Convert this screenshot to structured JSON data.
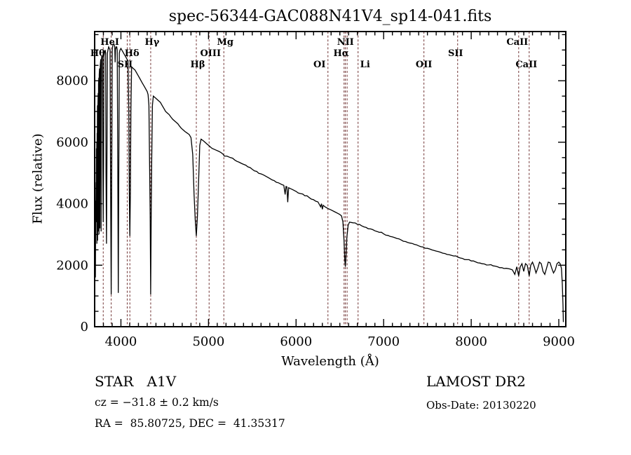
{
  "figure": {
    "title": "spec-56344-GAC088N41V4_sp14-041.fits",
    "background_color": "#ffffff",
    "frame_color": "#000000",
    "spectrum_color": "#000000",
    "line_marker_color": "#713434",
    "annotations": {
      "class_line": "STAR   A1V",
      "cz_line": "cz = −31.8 ± 0.2 km/s",
      "radec_line": "RA =  85.80725, DEC =  41.35317",
      "survey_line": "LAMOST DR2",
      "obsdate_line": "Obs-Date: 20130220"
    }
  },
  "chart_data": {
    "type": "line",
    "title": "spec-56344-GAC088N41V4_sp14-041.fits",
    "xlabel": "Wavelength (Å)",
    "ylabel": "Flux (relative)",
    "xlim": [
      3700,
      9080
    ],
    "ylim": [
      0,
      9600
    ],
    "x_major_ticks": [
      4000,
      5000,
      6000,
      7000,
      8000,
      9000
    ],
    "x_minor_step": 100,
    "y_major_ticks": [
      0,
      2000,
      4000,
      6000,
      8000
    ],
    "y_minor_step": 500,
    "grid": false,
    "legend": "none",
    "noise_amplitude": 28,
    "spectral_lines": [
      {
        "label": "Hθ",
        "wavelength": 3798,
        "row": 2,
        "dx": -8
      },
      {
        "label": "HeI",
        "wavelength": 3889,
        "row": 1,
        "dx": -2
      },
      {
        "label": "SII",
        "wavelength": 4072,
        "row": 3,
        "dx": -3
      },
      {
        "label": "Hδ",
        "wavelength": 4102,
        "row": 2,
        "dx": 3
      },
      {
        "label": "Hγ",
        "wavelength": 4340,
        "row": 1,
        "dx": 2
      },
      {
        "label": "Hβ",
        "wavelength": 4861,
        "row": 3,
        "dx": 2
      },
      {
        "label": "OIII",
        "wavelength": 5007,
        "row": 2,
        "dx": 2
      },
      {
        "label": "Mg",
        "wavelength": 5175,
        "row": 1,
        "dx": 2
      },
      {
        "label": "OI",
        "wavelength": 6364,
        "row": 3,
        "dx": -12
      },
      {
        "label": "NII",
        "wavelength": 6548,
        "row": 1,
        "dx": 2
      },
      {
        "label": "Hα",
        "wavelength": 6563,
        "row": 2,
        "dx": -6
      },
      {
        "label": "",
        "wavelength": 6583,
        "row": 0,
        "dx": 0
      },
      {
        "label": "Li",
        "wavelength": 6708,
        "row": 3,
        "dx": 10
      },
      {
        "label": "OII",
        "wavelength": 7460,
        "row": 3,
        "dx": 0
      },
      {
        "label": "SII",
        "wavelength": 7845,
        "row": 2,
        "dx": -3
      },
      {
        "label": "CaII",
        "wavelength": 8542,
        "row": 1,
        "dx": -2
      },
      {
        "label": "CaII",
        "wavelength": 8662,
        "row": 3,
        "dx": -4
      }
    ],
    "series": [
      {
        "name": "flux",
        "points": [
          [
            3701,
            60
          ],
          [
            3702,
            3300
          ],
          [
            3705,
            2600
          ],
          [
            3707,
            4100
          ],
          [
            3709,
            1600
          ],
          [
            3712,
            3900
          ],
          [
            3714,
            3600
          ],
          [
            3716,
            4700
          ],
          [
            3718,
            4400
          ],
          [
            3720,
            5800
          ],
          [
            3722,
            3400
          ],
          [
            3724,
            6000
          ],
          [
            3726,
            2700
          ],
          [
            3728,
            6300
          ],
          [
            3730,
            5600
          ],
          [
            3732,
            7200
          ],
          [
            3734,
            2800
          ],
          [
            3736,
            7000
          ],
          [
            3740,
            7600
          ],
          [
            3742,
            3100
          ],
          [
            3744,
            7900
          ],
          [
            3748,
            8100
          ],
          [
            3750,
            3000
          ],
          [
            3752,
            8200
          ],
          [
            3756,
            8400
          ],
          [
            3760,
            3200
          ],
          [
            3764,
            8500
          ],
          [
            3770,
            8700
          ],
          [
            3774,
            3100
          ],
          [
            3778,
            8700
          ],
          [
            3782,
            8800
          ],
          [
            3790,
            8800
          ],
          [
            3794,
            5200
          ],
          [
            3798,
            3400
          ],
          [
            3802,
            5400
          ],
          [
            3806,
            8800
          ],
          [
            3812,
            8900
          ],
          [
            3820,
            9000
          ],
          [
            3826,
            8900
          ],
          [
            3830,
            5000
          ],
          [
            3835,
            2700
          ],
          [
            3840,
            5200
          ],
          [
            3846,
            8900
          ],
          [
            3852,
            9000
          ],
          [
            3860,
            9100
          ],
          [
            3876,
            9000
          ],
          [
            3882,
            4800
          ],
          [
            3889,
            1050
          ],
          [
            3895,
            5200
          ],
          [
            3901,
            9000
          ],
          [
            3910,
            9200
          ],
          [
            3920,
            9200
          ],
          [
            3930,
            9100
          ],
          [
            3934,
            8600
          ],
          [
            3938,
            9000
          ],
          [
            3945,
            9100
          ],
          [
            3952,
            9100
          ],
          [
            3958,
            9000
          ],
          [
            3964,
            5200
          ],
          [
            3970,
            1100
          ],
          [
            3976,
            5400
          ],
          [
            3982,
            8900
          ],
          [
            3990,
            9000
          ],
          [
            4000,
            9050
          ],
          [
            4010,
            9000
          ],
          [
            4020,
            8950
          ],
          [
            4030,
            8900
          ],
          [
            4040,
            8850
          ],
          [
            4050,
            8800
          ],
          [
            4060,
            8750
          ],
          [
            4070,
            8700
          ],
          [
            4080,
            8650
          ],
          [
            4090,
            7000
          ],
          [
            4096,
            4200
          ],
          [
            4102,
            2950
          ],
          [
            4108,
            4400
          ],
          [
            4114,
            7000
          ],
          [
            4122,
            8450
          ],
          [
            4140,
            8400
          ],
          [
            4160,
            8350
          ],
          [
            4180,
            8250
          ],
          [
            4200,
            8150
          ],
          [
            4220,
            8050
          ],
          [
            4240,
            7950
          ],
          [
            4260,
            7850
          ],
          [
            4280,
            7750
          ],
          [
            4300,
            7650
          ],
          [
            4310,
            7550
          ],
          [
            4320,
            7200
          ],
          [
            4328,
            5200
          ],
          [
            4334,
            3600
          ],
          [
            4340,
            1050
          ],
          [
            4346,
            3700
          ],
          [
            4352,
            5400
          ],
          [
            4360,
            7200
          ],
          [
            4370,
            7500
          ],
          [
            4390,
            7450
          ],
          [
            4410,
            7400
          ],
          [
            4430,
            7350
          ],
          [
            4450,
            7300
          ],
          [
            4470,
            7200
          ],
          [
            4490,
            7100
          ],
          [
            4510,
            7000
          ],
          [
            4530,
            6950
          ],
          [
            4550,
            6900
          ],
          [
            4570,
            6820
          ],
          [
            4590,
            6750
          ],
          [
            4610,
            6700
          ],
          [
            4630,
            6650
          ],
          [
            4650,
            6600
          ],
          [
            4670,
            6520
          ],
          [
            4690,
            6450
          ],
          [
            4710,
            6400
          ],
          [
            4730,
            6350
          ],
          [
            4780,
            6250
          ],
          [
            4800,
            6150
          ],
          [
            4820,
            5600
          ],
          [
            4835,
            4300
          ],
          [
            4848,
            3500
          ],
          [
            4861,
            2950
          ],
          [
            4874,
            3600
          ],
          [
            4886,
            4600
          ],
          [
            4900,
            5900
          ],
          [
            4915,
            6100
          ],
          [
            4940,
            6050
          ],
          [
            4960,
            6000
          ],
          [
            4980,
            5950
          ],
          [
            5000,
            5900
          ],
          [
            5020,
            5850
          ],
          [
            5040,
            5800
          ],
          [
            5080,
            5750
          ],
          [
            5120,
            5700
          ],
          [
            5170,
            5600
          ],
          [
            5180,
            5550
          ],
          [
            5210,
            5550
          ],
          [
            5250,
            5500
          ],
          [
            5300,
            5420
          ],
          [
            5350,
            5350
          ],
          [
            5400,
            5280
          ],
          [
            5450,
            5200
          ],
          [
            5500,
            5120
          ],
          [
            5550,
            5050
          ],
          [
            5600,
            4970
          ],
          [
            5650,
            4900
          ],
          [
            5700,
            4820
          ],
          [
            5750,
            4750
          ],
          [
            5800,
            4680
          ],
          [
            5840,
            4620
          ],
          [
            5860,
            4600
          ],
          [
            5875,
            4300
          ],
          [
            5885,
            4560
          ],
          [
            5895,
            4550
          ],
          [
            5905,
            4050
          ],
          [
            5915,
            4520
          ],
          [
            5930,
            4500
          ],
          [
            5960,
            4460
          ],
          [
            6000,
            4400
          ],
          [
            6050,
            4330
          ],
          [
            6100,
            4260
          ],
          [
            6150,
            4200
          ],
          [
            6200,
            4130
          ],
          [
            6250,
            4060
          ],
          [
            6280,
            3900
          ],
          [
            6290,
            4000
          ],
          [
            6300,
            3820
          ],
          [
            6310,
            3950
          ],
          [
            6330,
            3900
          ],
          [
            6360,
            3850
          ],
          [
            6400,
            3800
          ],
          [
            6440,
            3740
          ],
          [
            6480,
            3680
          ],
          [
            6500,
            3650
          ],
          [
            6520,
            3600
          ],
          [
            6535,
            3400
          ],
          [
            6548,
            2800
          ],
          [
            6556,
            2200
          ],
          [
            6563,
            1950
          ],
          [
            6570,
            2300
          ],
          [
            6580,
            2900
          ],
          [
            6595,
            3300
          ],
          [
            6610,
            3400
          ],
          [
            6650,
            3380
          ],
          [
            6700,
            3330
          ],
          [
            6750,
            3280
          ],
          [
            6800,
            3230
          ],
          [
            6850,
            3180
          ],
          [
            6900,
            3120
          ],
          [
            6950,
            3070
          ],
          [
            7000,
            3020
          ],
          [
            7050,
            2970
          ],
          [
            7100,
            2920
          ],
          [
            7150,
            2870
          ],
          [
            7200,
            2820
          ],
          [
            7250,
            2770
          ],
          [
            7300,
            2720
          ],
          [
            7350,
            2680
          ],
          [
            7400,
            2630
          ],
          [
            7450,
            2590
          ],
          [
            7500,
            2550
          ],
          [
            7550,
            2500
          ],
          [
            7600,
            2460
          ],
          [
            7650,
            2420
          ],
          [
            7700,
            2380
          ],
          [
            7750,
            2340
          ],
          [
            7800,
            2300
          ],
          [
            7850,
            2260
          ],
          [
            7900,
            2220
          ],
          [
            7950,
            2180
          ],
          [
            8000,
            2140
          ],
          [
            8050,
            2110
          ],
          [
            8100,
            2070
          ],
          [
            8150,
            2040
          ],
          [
            8200,
            2010
          ],
          [
            8250,
            1980
          ],
          [
            8300,
            1950
          ],
          [
            8350,
            1920
          ],
          [
            8400,
            1900
          ],
          [
            8440,
            1880
          ],
          [
            8470,
            1850
          ],
          [
            8498,
            1700
          ],
          [
            8520,
            1950
          ],
          [
            8542,
            1650
          ],
          [
            8560,
            1950
          ],
          [
            8580,
            2050
          ],
          [
            8600,
            1800
          ],
          [
            8620,
            2050
          ],
          [
            8640,
            2000
          ],
          [
            8662,
            1650
          ],
          [
            8680,
            2000
          ],
          [
            8700,
            2100
          ],
          [
            8720,
            1950
          ],
          [
            8740,
            1750
          ],
          [
            8760,
            1900
          ],
          [
            8780,
            2100
          ],
          [
            8800,
            2050
          ],
          [
            8820,
            1800
          ],
          [
            8840,
            1700
          ],
          [
            8860,
            1900
          ],
          [
            8880,
            2100
          ],
          [
            8900,
            2080
          ],
          [
            8920,
            1900
          ],
          [
            8940,
            1750
          ],
          [
            8960,
            1850
          ],
          [
            8980,
            2050
          ],
          [
            9000,
            2100
          ],
          [
            9015,
            2050
          ],
          [
            9030,
            1900
          ],
          [
            9040,
            1400
          ],
          [
            9048,
            700
          ],
          [
            9052,
            150
          ]
        ]
      }
    ]
  }
}
